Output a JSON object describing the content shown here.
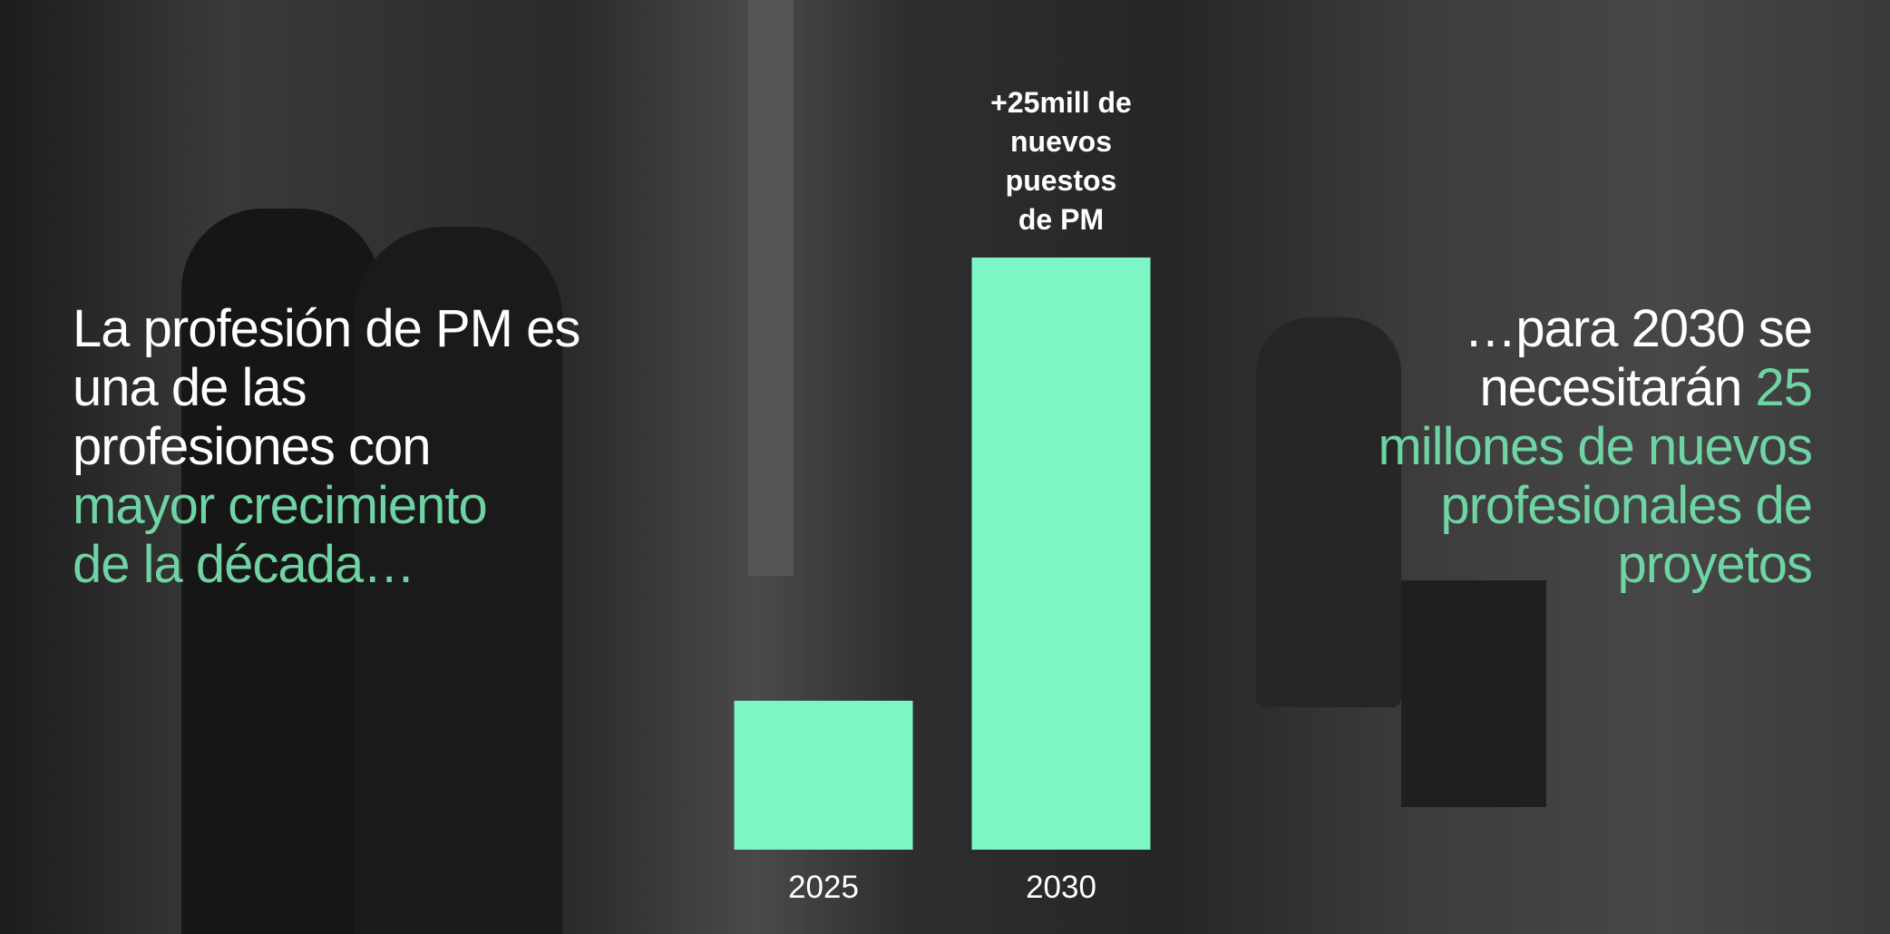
{
  "chart_data": {
    "type": "bar",
    "categories": [
      "2025",
      "2030"
    ],
    "values": [
      8.4,
      33.4
    ],
    "color": "#7ef5c4",
    "annotation": [
      "+25mill de",
      "nuevos",
      "puestos",
      "de PM"
    ]
  },
  "left_text": {
    "plain": [
      "La profesión de PM es",
      "una de las",
      "profesiones con"
    ],
    "highlight": [
      "mayor crecimiento",
      "de la década…"
    ]
  },
  "right_text": {
    "plain": [
      "…para 2030 se",
      "necesitarán"
    ],
    "highlight": [
      "25",
      "millones de nuevos",
      "profesionales de",
      "proyetos"
    ]
  }
}
